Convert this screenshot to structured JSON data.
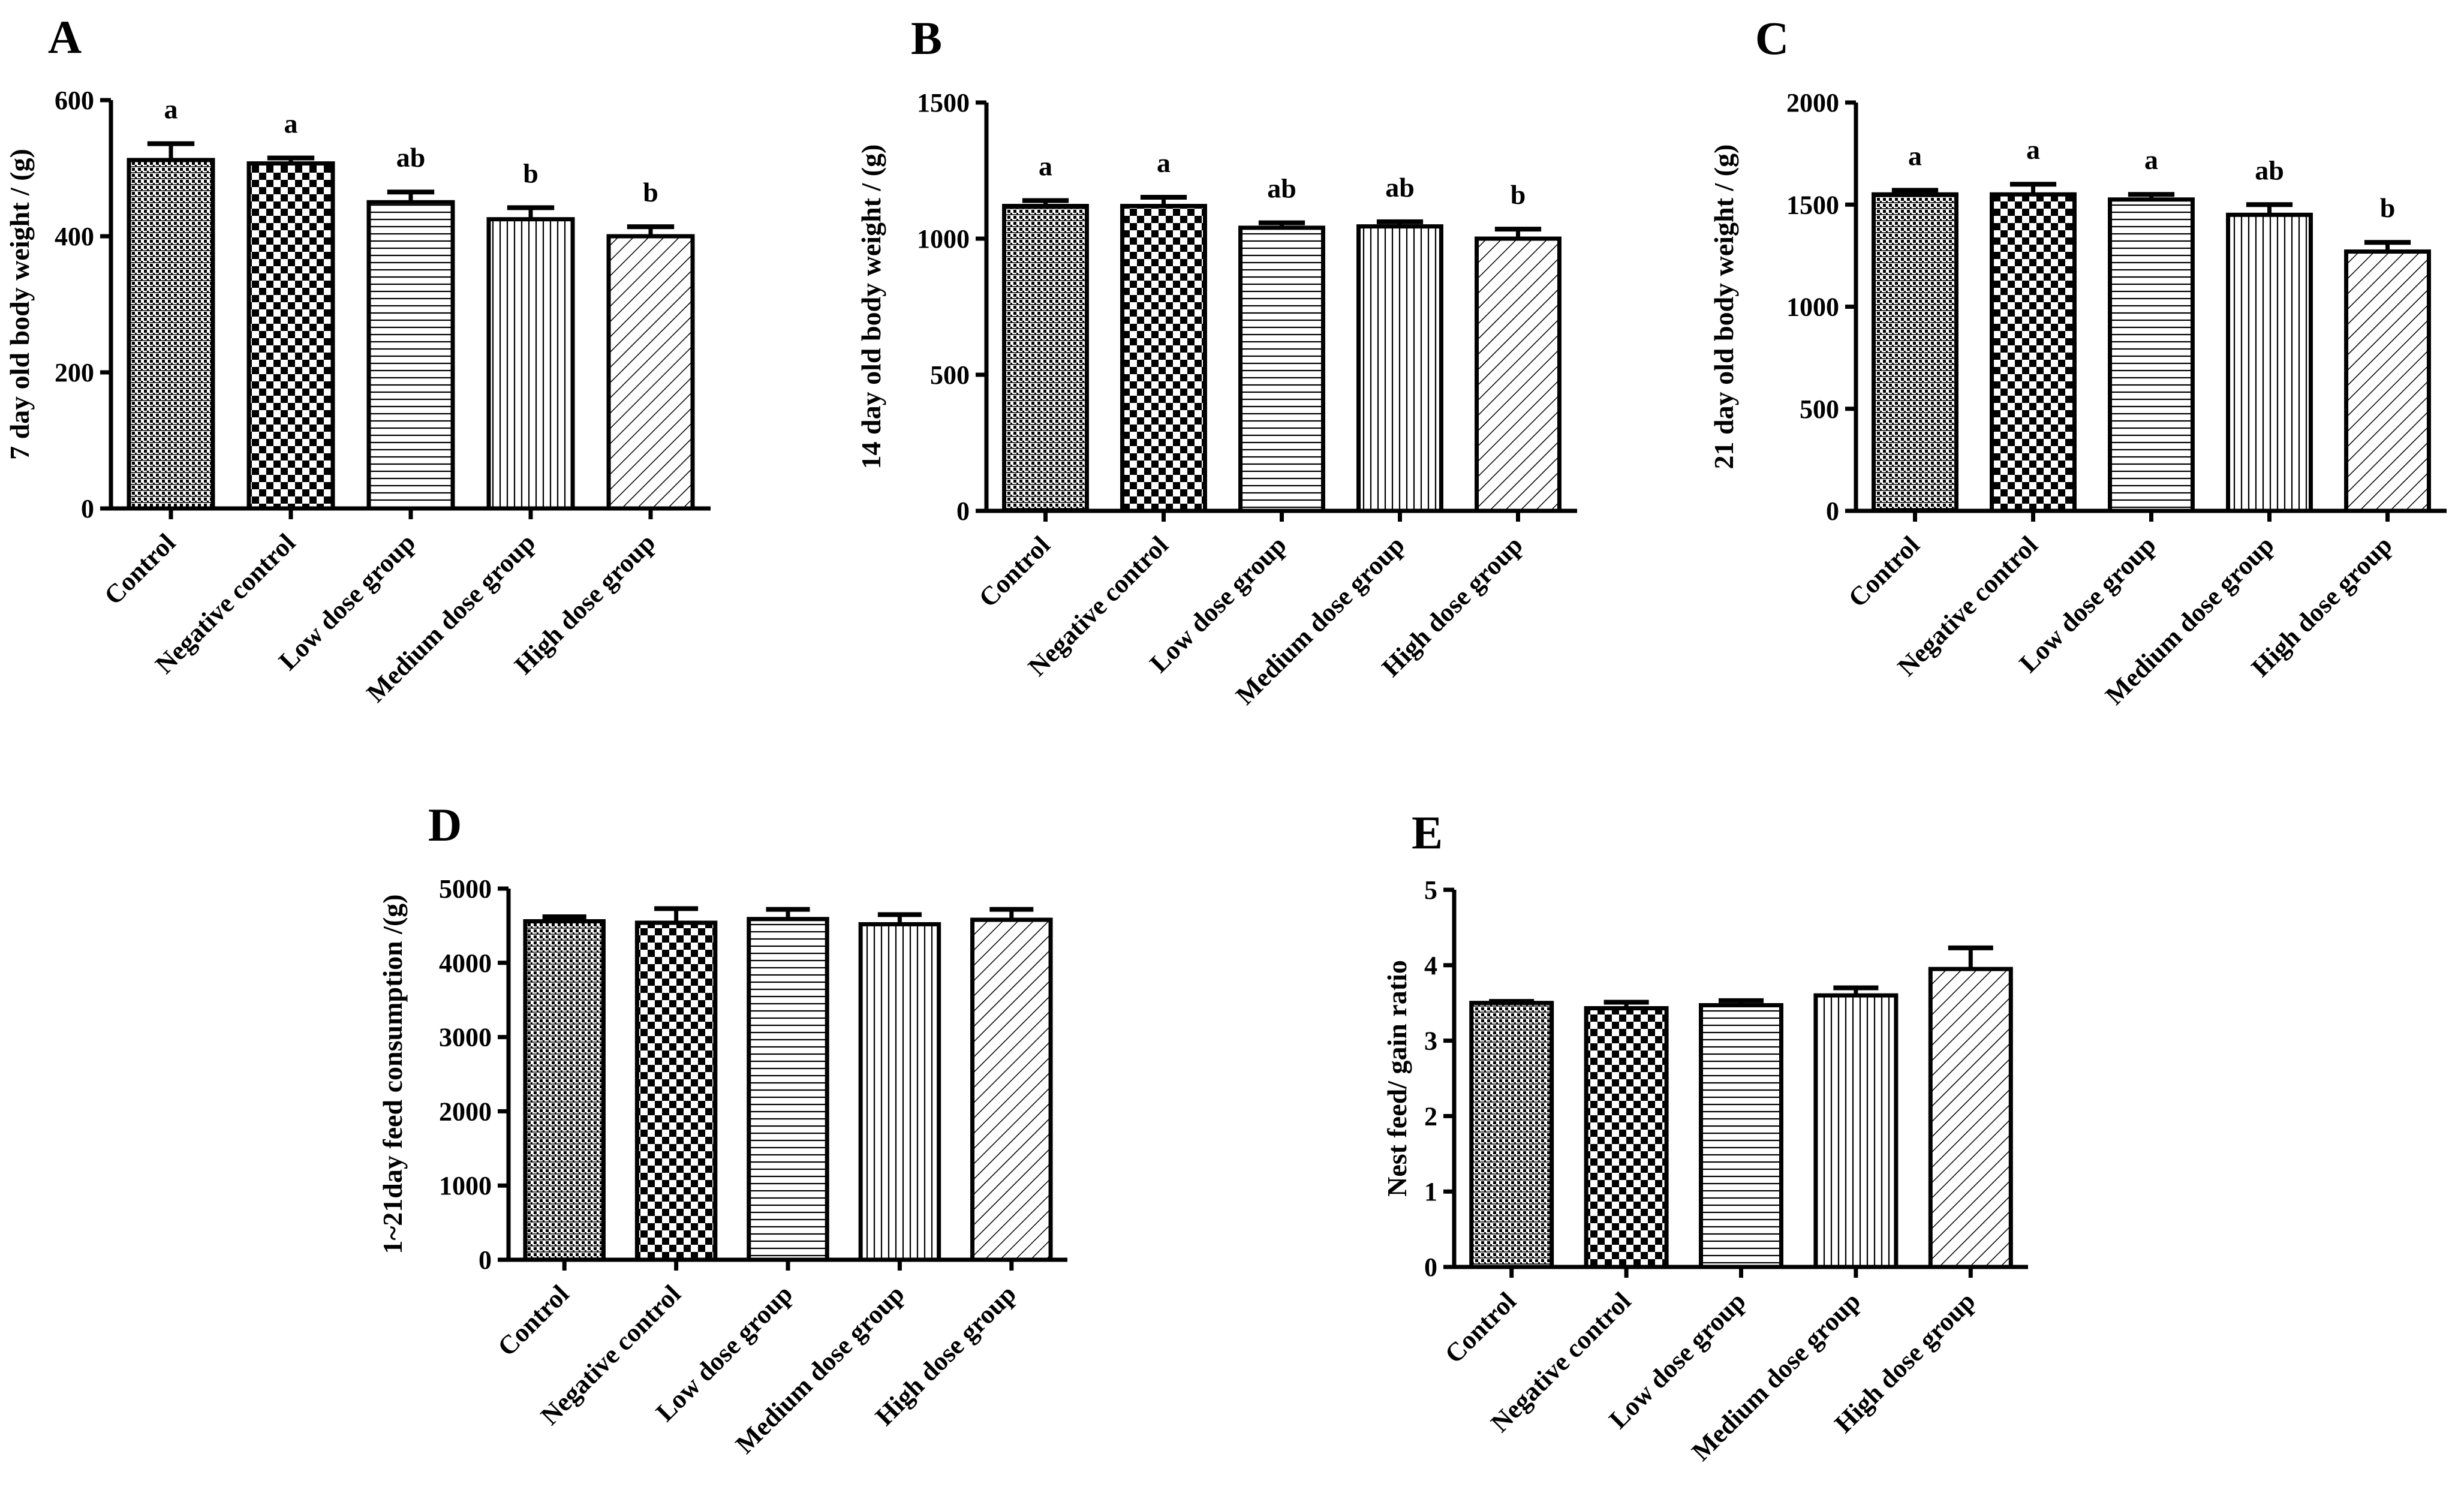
{
  "figure": {
    "categories": [
      "Control",
      "Negative control",
      "Low dose group",
      "Medium dose group",
      "High dose group"
    ],
    "patterns": [
      "dense-grid",
      "checker",
      "horizontal-lines",
      "vertical-lines",
      "diagonal-lines"
    ]
  },
  "chart_data": [
    {
      "panel": "A",
      "type": "bar",
      "ylabel": "7 day old body weight / (g)",
      "ylim": [
        0,
        600
      ],
      "yticks": [
        0,
        200,
        400,
        600
      ],
      "categories": [
        "Control",
        "Negative control",
        "Low dose group",
        "Medium dose group",
        "High dose group"
      ],
      "values": [
        512,
        507,
        450,
        425,
        400
      ],
      "errors": [
        24,
        8,
        15,
        17,
        14
      ],
      "significance": [
        "a",
        "a",
        "ab",
        "b",
        "b"
      ]
    },
    {
      "panel": "B",
      "type": "bar",
      "ylabel": "14 day old body weight / (g)",
      "ylim": [
        0,
        1500
      ],
      "yticks": [
        0,
        500,
        1000,
        1500
      ],
      "categories": [
        "Control",
        "Negative control",
        "Low dose group",
        "Medium dose group",
        "High dose group"
      ],
      "values": [
        1120,
        1120,
        1040,
        1045,
        1000
      ],
      "errors": [
        20,
        32,
        18,
        17,
        35
      ],
      "significance": [
        "a",
        "a",
        "ab",
        "ab",
        "b"
      ]
    },
    {
      "panel": "C",
      "type": "bar",
      "ylabel": "21 day old body weight / (g)",
      "ylim": [
        0,
        2000
      ],
      "yticks": [
        0,
        500,
        1000,
        1500,
        2000
      ],
      "categories": [
        "Control",
        "Negative control",
        "Low dose group",
        "Medium dose group",
        "High dose group"
      ],
      "values": [
        1550,
        1550,
        1525,
        1450,
        1270
      ],
      "errors": [
        20,
        50,
        25,
        50,
        45
      ],
      "significance": [
        "a",
        "a",
        "a",
        "ab",
        "b"
      ]
    },
    {
      "panel": "D",
      "type": "bar",
      "ylabel": "1~21day feed consumption /(g)",
      "ylim": [
        0,
        5000
      ],
      "yticks": [
        0,
        1000,
        2000,
        3000,
        4000,
        5000
      ],
      "categories": [
        "Control",
        "Negative control",
        "Low dose group",
        "Medium dose group",
        "High dose group"
      ],
      "values": [
        4560,
        4540,
        4590,
        4520,
        4580
      ],
      "errors": [
        60,
        190,
        130,
        130,
        140
      ],
      "significance": []
    },
    {
      "panel": "E",
      "type": "bar",
      "ylabel": "Nest feed/ gain ratio",
      "ylim": [
        0,
        5
      ],
      "yticks": [
        0,
        1,
        2,
        3,
        4,
        5
      ],
      "categories": [
        "Control",
        "Negative control",
        "Low dose group",
        "Medium dose group",
        "High dose group"
      ],
      "values": [
        3.5,
        3.43,
        3.47,
        3.6,
        3.95
      ],
      "errors": [
        0.02,
        0.08,
        0.06,
        0.1,
        0.28
      ],
      "significance": []
    }
  ]
}
